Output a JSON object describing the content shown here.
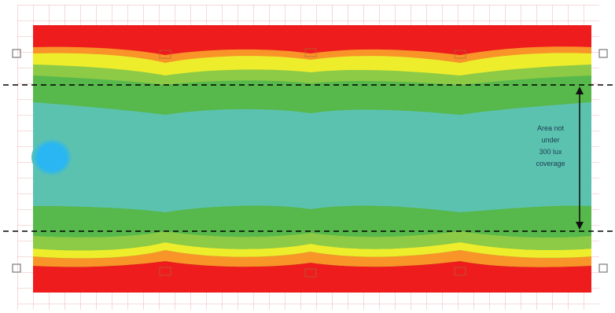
{
  "zones": {
    "colors": {
      "red": "#ee1c1c",
      "orange": "#f89428",
      "yellow": "#eded2c",
      "light_green": "#8dca46",
      "green": "#57b84b",
      "teal": "#5cc2b0",
      "blue": "#29b6f2"
    },
    "order_outer_to_center": [
      "red",
      "orange",
      "yellow",
      "light_green",
      "green",
      "teal"
    ],
    "hotspot": "blue"
  },
  "grid": {
    "color": "#e7a2a2",
    "visible": true
  },
  "boundary_lines": {
    "style": "dashed",
    "color": "#000000",
    "count": 2
  },
  "measurement": {
    "arrow": "double-headed",
    "label_lines": [
      "Area not",
      "under",
      "300 lux",
      "coverage"
    ]
  },
  "markers": {
    "icon": "square-marker-icon",
    "count": 4
  }
}
